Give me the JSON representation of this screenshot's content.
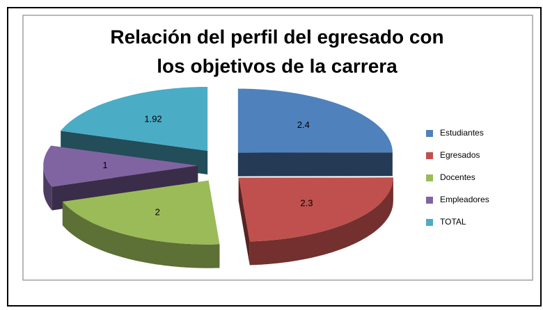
{
  "chart_data": {
    "type": "pie3d",
    "title": [
      "Relación del perfil del egresado con",
      "los objetivos de la carrera"
    ],
    "categories": [
      "Estudiantes",
      "Egresados",
      "Docentes",
      "Empleadores",
      "TOTAL"
    ],
    "values": [
      2.4,
      2.3,
      2,
      1,
      1.92
    ],
    "colors": [
      "#4f81bd",
      "#c0504d",
      "#9bbb59",
      "#8064a2",
      "#4bacc6"
    ],
    "legend": "right"
  }
}
